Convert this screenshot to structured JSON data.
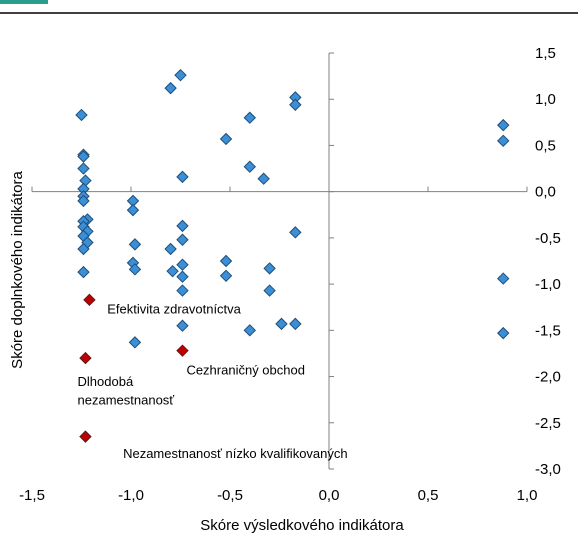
{
  "chart_data": {
    "type": "scatter",
    "title": "",
    "xlabel": "Skóre výsledkového indikátora",
    "ylabel": "Skóre doplnkového indikátora",
    "xlim": [
      -1.5,
      1.0
    ],
    "ylim": [
      -3.0,
      1.5
    ],
    "xticks": [
      -1.5,
      -1.0,
      -0.5,
      0.0,
      0.5,
      1.0
    ],
    "xtick_labels": [
      "-1,5",
      "-1,0",
      "-0,5",
      "0,0",
      "0,5",
      "1,0"
    ],
    "yticks": [
      1.5,
      1.0,
      0.5,
      0.0,
      -0.5,
      -1.0,
      -1.5,
      -2.0,
      -2.5,
      -3.0
    ],
    "ytick_labels": [
      "1,5",
      "1,0",
      "0,5",
      "0,0",
      "-0,5",
      "-1,0",
      "-1,5",
      "-2,0",
      "-2,5",
      "-3,0"
    ],
    "grid": false,
    "legend": "none",
    "colors": {
      "series_fill": "#3b8fd6",
      "series_edge": "#1f4e79",
      "highlight_fill": "#c00000",
      "highlight_edge": "#5a1a1a",
      "axis": "#808080",
      "top_bar": "#2a9d8f"
    },
    "series": [
      {
        "values": [
          [
            -1.25,
            0.83
          ],
          [
            -1.24,
            0.4
          ],
          [
            -1.24,
            0.38
          ],
          [
            -1.24,
            0.25
          ],
          [
            -1.23,
            0.12
          ],
          [
            -1.24,
            0.03
          ],
          [
            -1.24,
            -0.05
          ],
          [
            -1.24,
            -0.1
          ],
          [
            -1.22,
            -0.3
          ],
          [
            -1.24,
            -0.32
          ],
          [
            -1.24,
            -0.38
          ],
          [
            -1.22,
            -0.43
          ],
          [
            -1.24,
            -0.48
          ],
          [
            -1.22,
            -0.55
          ],
          [
            -1.24,
            -0.62
          ],
          [
            -1.24,
            -0.87
          ],
          [
            -0.99,
            -0.1
          ],
          [
            -0.99,
            -0.2
          ],
          [
            -0.98,
            -0.57
          ],
          [
            -0.99,
            -0.77
          ],
          [
            -0.98,
            -0.84
          ],
          [
            -0.98,
            -1.63
          ],
          [
            -0.8,
            1.12
          ],
          [
            -0.8,
            -0.62
          ],
          [
            -0.79,
            -0.86
          ],
          [
            -0.75,
            1.26
          ],
          [
            -0.74,
            0.16
          ],
          [
            -0.74,
            -0.37
          ],
          [
            -0.74,
            -0.52
          ],
          [
            -0.74,
            -0.79
          ],
          [
            -0.74,
            -0.92
          ],
          [
            -0.74,
            -1.07
          ],
          [
            -0.74,
            -1.45
          ],
          [
            -0.52,
            0.57
          ],
          [
            -0.52,
            -0.75
          ],
          [
            -0.52,
            -0.91
          ],
          [
            -0.4,
            0.8
          ],
          [
            -0.4,
            0.27
          ],
          [
            -0.4,
            -1.5
          ],
          [
            -0.33,
            0.14
          ],
          [
            -0.3,
            -0.83
          ],
          [
            -0.3,
            -1.07
          ],
          [
            -0.24,
            -1.43
          ],
          [
            -0.17,
            1.02
          ],
          [
            -0.17,
            0.94
          ],
          [
            -0.17,
            -0.44
          ],
          [
            -0.17,
            -1.43
          ],
          [
            0.88,
            0.72
          ],
          [
            0.88,
            0.55
          ],
          [
            0.88,
            -0.94
          ],
          [
            0.88,
            -1.53
          ]
        ]
      },
      {
        "highlight": true,
        "values": [
          [
            -1.21,
            -1.17
          ],
          [
            -1.23,
            -1.8
          ],
          [
            -0.74,
            -1.72
          ],
          [
            -1.23,
            -2.65
          ]
        ]
      }
    ],
    "annotations": [
      {
        "text": "Efektivita zdravotníctva",
        "x": -1.12,
        "y": -1.32
      },
      {
        "text": "Cezhraničný obchod",
        "x": -0.72,
        "y": -1.98
      },
      {
        "text": "Dlhodobá",
        "x": -1.27,
        "y": -2.1
      },
      {
        "text": "nezamestnanosť",
        "x": -1.27,
        "y": -2.3
      },
      {
        "text": "Nezamestnanosť nízko kvalifikovaných",
        "x": -1.04,
        "y": -2.88
      }
    ]
  }
}
